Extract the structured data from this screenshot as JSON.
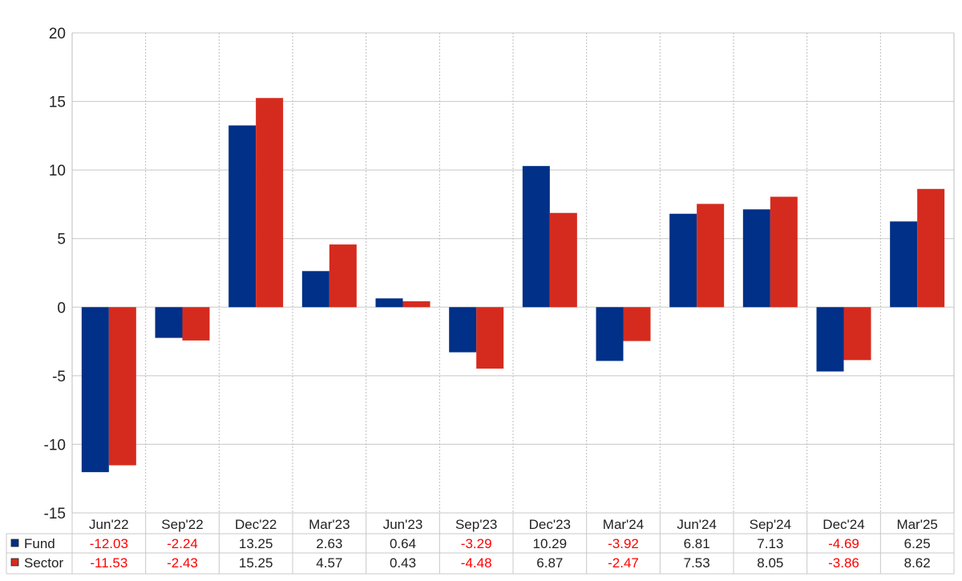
{
  "chart_data": {
    "type": "bar",
    "categories": [
      "Jun'22",
      "Sep'22",
      "Dec'22",
      "Mar'23",
      "Jun'23",
      "Sep'23",
      "Dec'23",
      "Mar'24",
      "Jun'24",
      "Sep'24",
      "Dec'24",
      "Mar'25"
    ],
    "series": [
      {
        "name": "Fund",
        "color": "#003087",
        "values": [
          -12.03,
          -2.24,
          13.25,
          2.63,
          0.64,
          -3.29,
          10.29,
          -3.92,
          6.81,
          7.13,
          -4.69,
          6.25
        ],
        "labels": [
          "-12.03",
          "-2.24",
          "13.25",
          "2.63",
          "0.64",
          "-3.29",
          "10.29",
          "-3.92",
          "6.81",
          "7.13",
          "-4.69",
          "6.25"
        ]
      },
      {
        "name": "Sector",
        "color": "#d52b1e",
        "values": [
          -11.53,
          -2.43,
          15.25,
          4.57,
          0.43,
          -4.48,
          6.87,
          -2.47,
          7.53,
          8.05,
          -3.86,
          8.62
        ],
        "labels": [
          "-11.53",
          "-2.43",
          "15.25",
          "4.57",
          "0.43",
          "-4.48",
          "6.87",
          "-2.47",
          "7.53",
          "8.05",
          "-3.86",
          "8.62"
        ]
      }
    ],
    "y_ticks": [
      "20",
      "15",
      "10",
      "5",
      "0",
      "-5",
      "-10",
      "-15"
    ],
    "ylim": [
      -15,
      20
    ],
    "title": "",
    "xlabel": "",
    "ylabel": "",
    "grid": true,
    "legend": "table-bottom",
    "negative_text_color": "#ff0000"
  }
}
